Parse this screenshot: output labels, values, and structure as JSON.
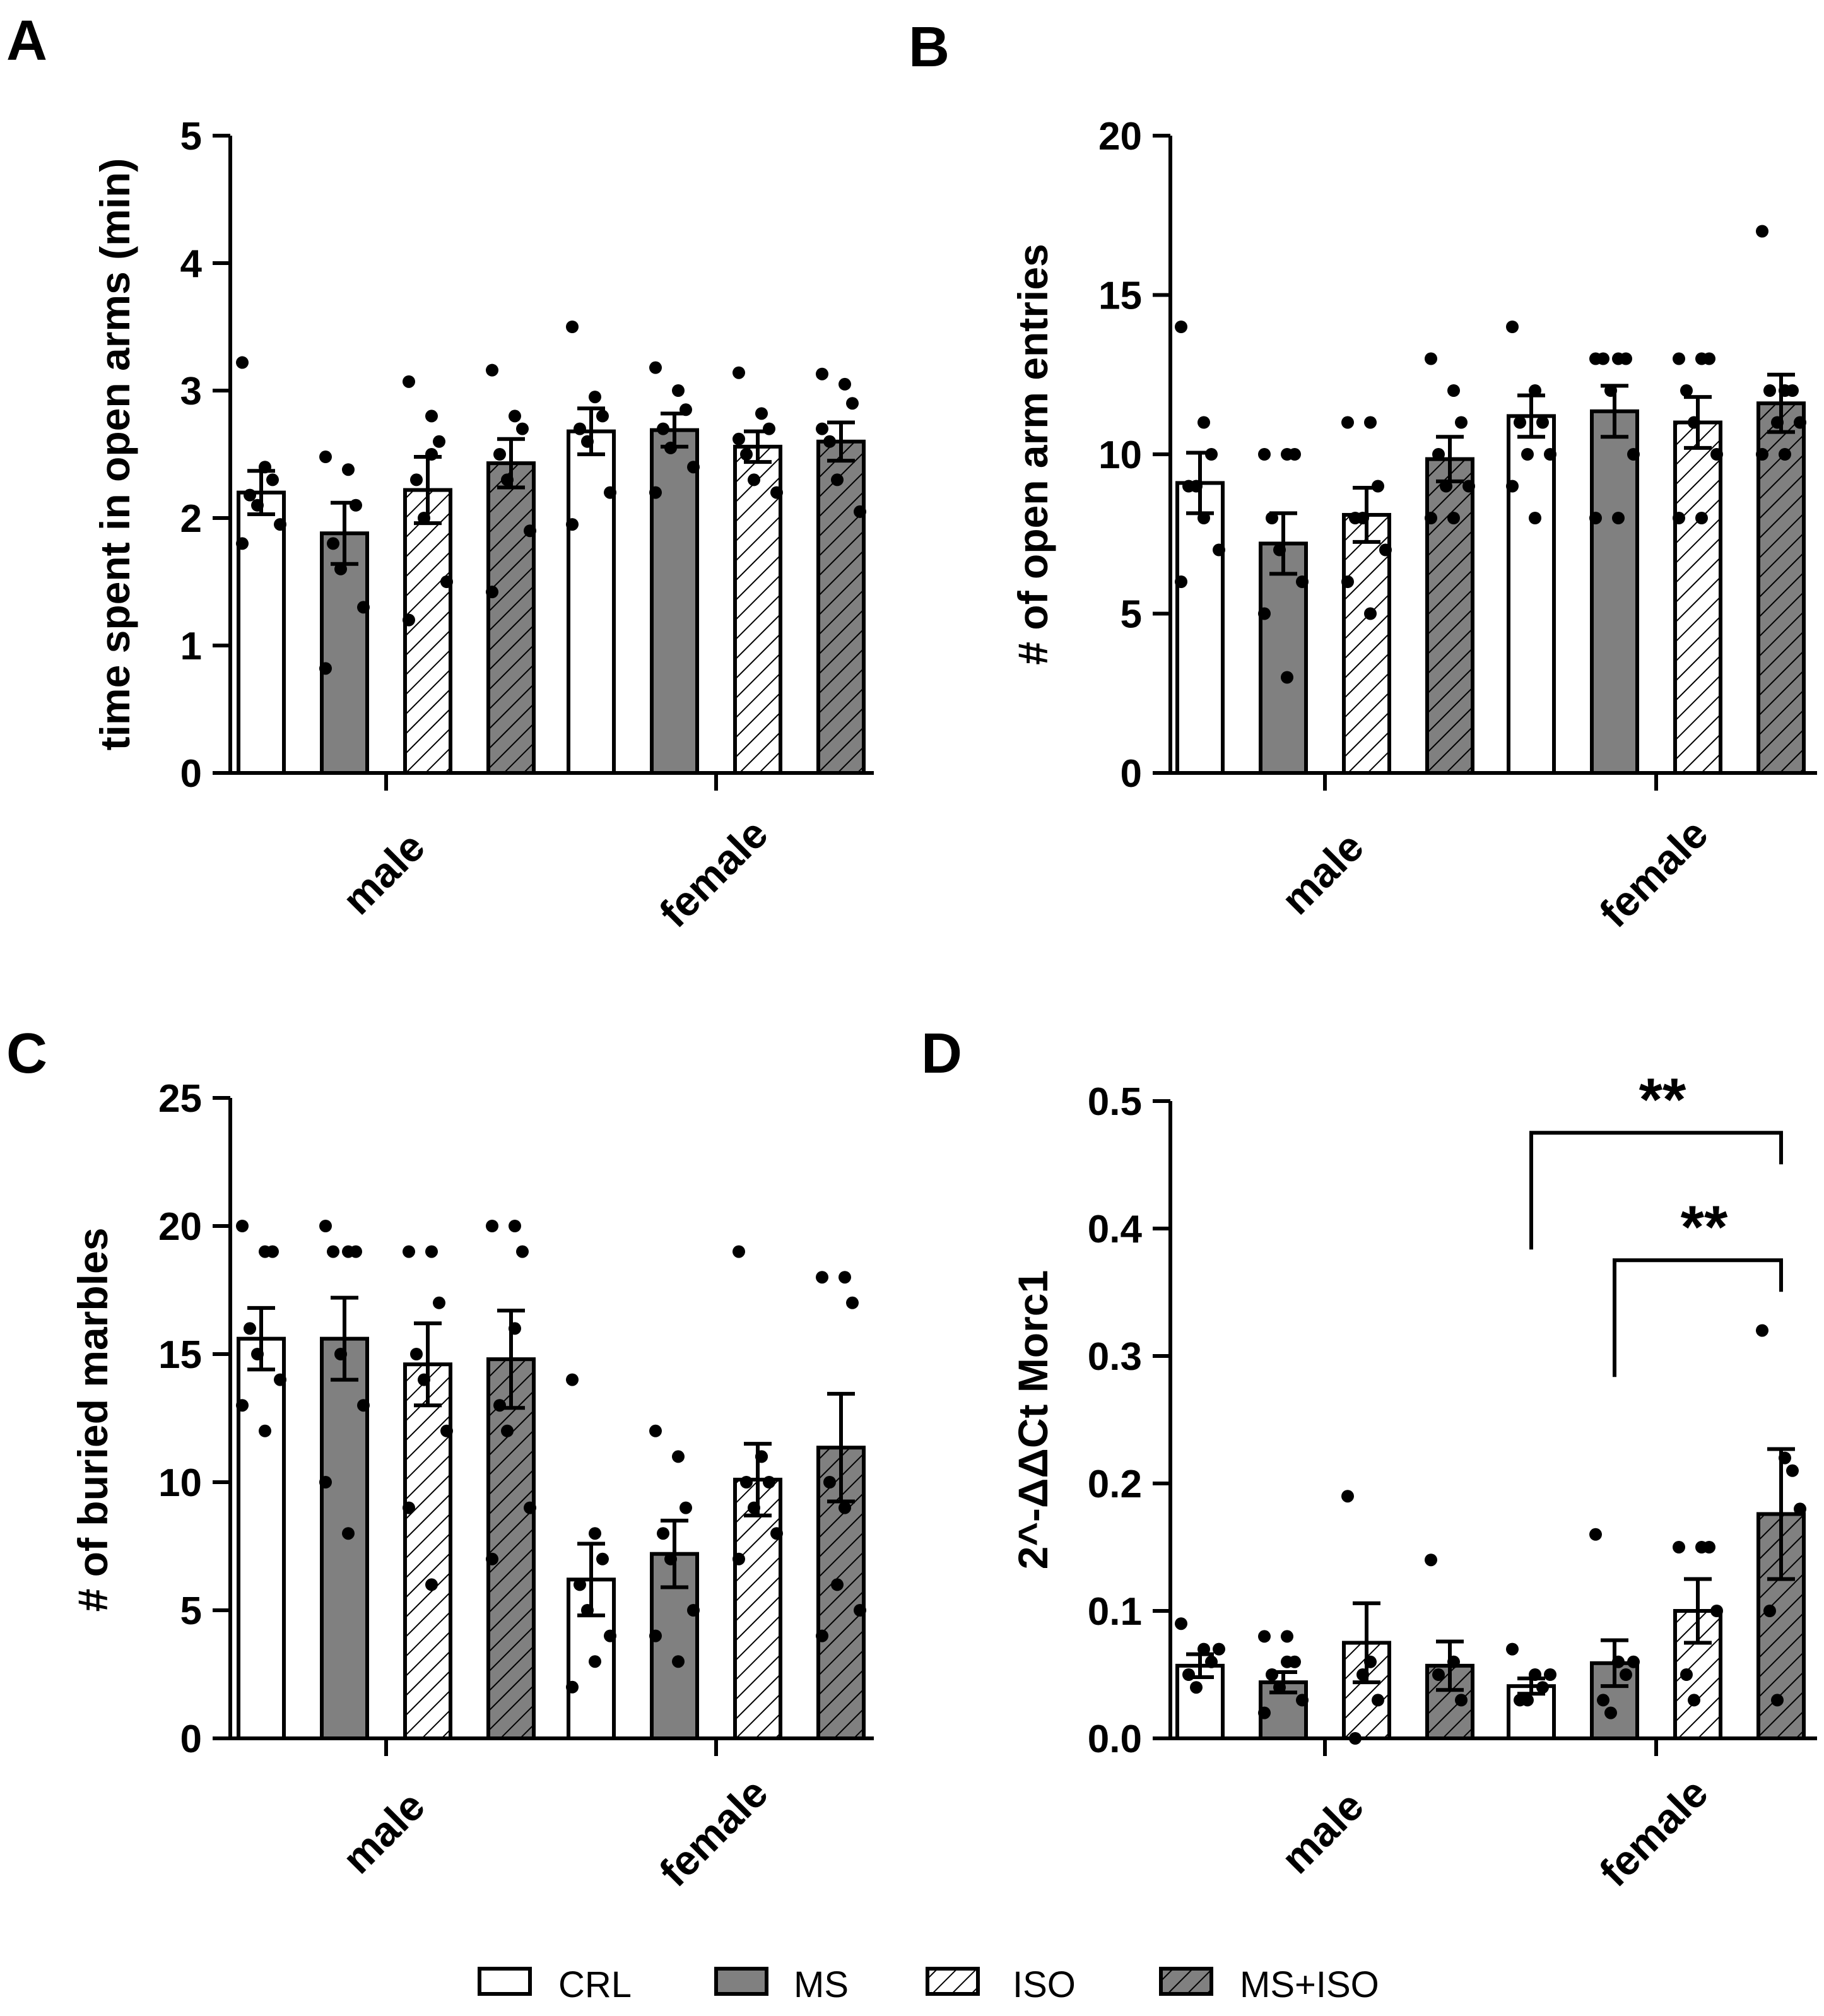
{
  "figure": {
    "groups": [
      "male",
      "female"
    ],
    "legend": [
      {
        "name": "CRL",
        "fill": "white"
      },
      {
        "name": "MS",
        "fill": "gray"
      },
      {
        "name": "ISO",
        "fill": "hatch"
      },
      {
        "name": "MS+ISO",
        "fill": "grayhatch"
      }
    ],
    "colors": {
      "gray": "#808080",
      "black": "#000000",
      "white": "#ffffff"
    }
  },
  "chart_data": [
    {
      "panel": "A",
      "type": "bar",
      "ylabel": "time spent in open arms (min)",
      "ylim": [
        0,
        5
      ],
      "yticks": [
        0,
        1,
        2,
        3,
        4,
        5
      ],
      "ytick_labels": [
        "0",
        "1",
        "2",
        "3",
        "4",
        "5"
      ],
      "categories": [
        "male",
        "female"
      ],
      "series": [
        {
          "name": "CRL",
          "values": [
            2.2,
            2.68
          ],
          "sem": [
            0.17,
            0.18
          ],
          "points": [
            [
              3.22,
              2.4,
              2.3,
              2.18,
              2.1,
              1.95,
              1.8
            ],
            [
              3.5,
              2.95,
              2.8,
              2.7,
              2.6,
              2.2,
              1.95
            ]
          ]
        },
        {
          "name": "MS",
          "values": [
            1.88,
            2.69
          ],
          "sem": [
            0.24,
            0.13
          ],
          "points": [
            [
              2.48,
              2.38,
              2.1,
              1.8,
              1.6,
              1.3,
              0.82
            ],
            [
              3.18,
              3.0,
              2.85,
              2.7,
              2.55,
              2.4,
              2.2
            ]
          ]
        },
        {
          "name": "ISO",
          "values": [
            2.22,
            2.56
          ],
          "sem": [
            0.26,
            0.12
          ],
          "points": [
            [
              3.07,
              2.8,
              2.6,
              2.3,
              2.0,
              1.5,
              1.2,
              2.5
            ],
            [
              3.14,
              2.82,
              2.7,
              2.5,
              2.3,
              2.2,
              2.62
            ]
          ]
        },
        {
          "name": "MS+ISO",
          "values": [
            2.43,
            2.6
          ],
          "sem": [
            0.19,
            0.15
          ],
          "points": [
            [
              3.16,
              2.8,
              2.7,
              2.5,
              2.3,
              1.9,
              1.42
            ],
            [
              3.13,
              3.05,
              2.9,
              2.6,
              2.3,
              2.05,
              2.7
            ]
          ]
        }
      ]
    },
    {
      "panel": "B",
      "type": "bar",
      "ylabel": "# of open arm entries",
      "ylim": [
        0,
        20
      ],
      "yticks": [
        0,
        5,
        10,
        15,
        20
      ],
      "ytick_labels": [
        "0",
        "5",
        "10",
        "15",
        "20"
      ],
      "categories": [
        "male",
        "female"
      ],
      "series": [
        {
          "name": "CRL",
          "values": [
            9.1,
            11.2
          ],
          "sem": [
            0.95,
            0.65
          ],
          "points": [
            [
              14,
              11,
              10,
              9,
              9,
              7,
              6,
              8
            ],
            [
              14,
              12,
              11,
              11,
              10,
              10,
              9,
              8
            ]
          ]
        },
        {
          "name": "MS",
          "values": [
            7.2,
            11.35
          ],
          "sem": [
            0.95,
            0.8
          ],
          "points": [
            [
              10,
              10,
              10,
              8,
              7,
              6,
              5,
              3
            ],
            [
              13,
              13,
              13,
              13,
              12,
              10,
              8,
              8
            ]
          ]
        },
        {
          "name": "ISO",
          "values": [
            8.1,
            11.0
          ],
          "sem": [
            0.85,
            0.8
          ],
          "points": [
            [
              11,
              11,
              9,
              8,
              8,
              7,
              6,
              5
            ],
            [
              13,
              13,
              13,
              12,
              11,
              10,
              8,
              8
            ]
          ]
        },
        {
          "name": "MS+ISO",
          "values": [
            9.85,
            11.6
          ],
          "sem": [
            0.7,
            0.9
          ],
          "points": [
            [
              13,
              12,
              11,
              10,
              9,
              9,
              8,
              8
            ],
            [
              17,
              12,
              12,
              12,
              11,
              11,
              10,
              10
            ]
          ]
        }
      ]
    },
    {
      "panel": "C",
      "type": "bar",
      "ylabel": "# of buried marbles",
      "ylim": [
        0,
        25
      ],
      "yticks": [
        0,
        5,
        10,
        15,
        20,
        25
      ],
      "ytick_labels": [
        "0",
        "5",
        "10",
        "15",
        "20",
        "25"
      ],
      "categories": [
        "male",
        "female"
      ],
      "series": [
        {
          "name": "CRL",
          "values": [
            15.6,
            6.2
          ],
          "sem": [
            1.2,
            1.4
          ],
          "points": [
            [
              20,
              19,
              19,
              16,
              15,
              14,
              13,
              12
            ],
            [
              14,
              8,
              7,
              6,
              5,
              4,
              2,
              3
            ]
          ]
        },
        {
          "name": "MS",
          "values": [
            15.6,
            7.2
          ],
          "sem": [
            1.6,
            1.3
          ],
          "points": [
            [
              20,
              19,
              19,
              19,
              15,
              13,
              10,
              8
            ],
            [
              12,
              11,
              9,
              8,
              7,
              5,
              4,
              3
            ]
          ]
        },
        {
          "name": "ISO",
          "values": [
            14.6,
            10.1
          ],
          "sem": [
            1.6,
            1.4
          ],
          "points": [
            [
              19,
              19,
              17,
              15,
              14,
              12,
              9,
              6
            ],
            [
              19,
              11,
              10,
              10,
              9,
              8,
              7,
              11
            ]
          ]
        },
        {
          "name": "MS+ISO",
          "values": [
            14.8,
            11.35
          ],
          "sem": [
            1.9,
            2.1
          ],
          "points": [
            [
              20,
              20,
              19,
              13,
              12,
              9,
              7,
              16
            ],
            [
              18,
              18,
              17,
              10,
              6,
              5,
              4,
              9
            ]
          ]
        }
      ]
    },
    {
      "panel": "D",
      "type": "bar",
      "ylabel": "2^-ΔΔCt Morc1",
      "ylim": [
        0,
        0.5
      ],
      "yticks": [
        0,
        0.1,
        0.2,
        0.3,
        0.4,
        0.5
      ],
      "ytick_labels": [
        "0.0",
        "0.1",
        "0.2",
        "0.3",
        "0.4",
        "0.5"
      ],
      "categories": [
        "male",
        "female"
      ],
      "series": [
        {
          "name": "CRL",
          "values": [
            0.057,
            0.041
          ],
          "sem": [
            0.009,
            0.006
          ],
          "points": [
            [
              0.09,
              0.07,
              0.06,
              0.05,
              0.04,
              0.07
            ],
            [
              0.07,
              0.05,
              0.04,
              0.03,
              0.03,
              0.05
            ]
          ]
        },
        {
          "name": "MS",
          "values": [
            0.044,
            0.059
          ],
          "sem": [
            0.008,
            0.018
          ],
          "points": [
            [
              0.08,
              0.08,
              0.06,
              0.05,
              0.04,
              0.03,
              0.02,
              0.06
            ],
            [
              0.16,
              0.06,
              0.05,
              0.03,
              0.02,
              0.06
            ]
          ]
        },
        {
          "name": "ISO",
          "values": [
            0.075,
            0.1
          ],
          "sem": [
            0.031,
            0.025
          ],
          "points": [
            [
              0.19,
              0.06,
              0.03,
              0.0,
              0.05
            ],
            [
              0.15,
              0.15,
              0.15,
              0.05,
              0.03,
              0.1
            ]
          ]
        },
        {
          "name": "MS+ISO",
          "values": [
            0.057,
            0.176
          ],
          "sem": [
            0.019,
            0.051
          ],
          "points": [
            [
              0.14,
              0.06,
              0.03,
              0.05
            ],
            [
              0.32,
              0.22,
              0.21,
              0.1,
              0.03,
              0.18
            ]
          ]
        }
      ],
      "annotations": [
        {
          "from": "female-CRL",
          "to": "female-MS+ISO",
          "label": "**",
          "level": 0.485
        },
        {
          "from": "female-MS",
          "to": "female-MS+ISO",
          "label": "**",
          "level": 0.385
        }
      ]
    }
  ]
}
